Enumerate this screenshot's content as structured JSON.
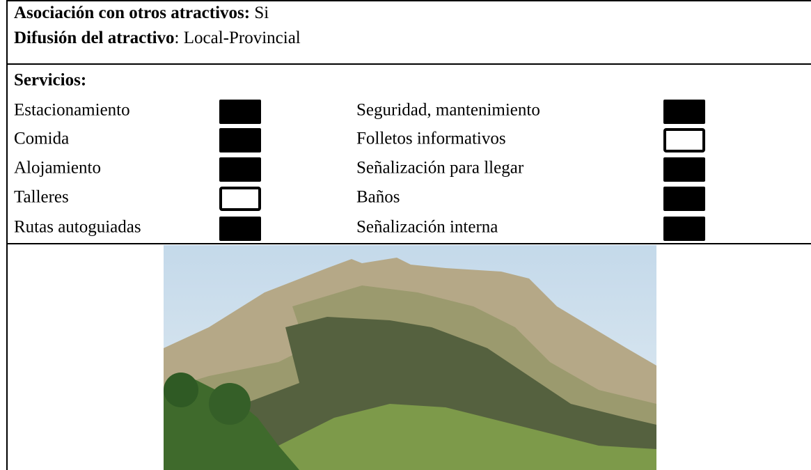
{
  "rows": [
    {
      "label": "Asociación con otros atractivos:",
      "value": " Si"
    },
    {
      "label": "Difusión del atractivo",
      "value": ": Local-Provincial"
    }
  ],
  "services": {
    "title": "Servicios:",
    "columns": [
      [
        {
          "label": "Estacionamiento",
          "checked": true
        },
        {
          "label": "Comida",
          "checked": true
        },
        {
          "label": "Alojamiento",
          "checked": true
        },
        {
          "label": "Talleres",
          "checked": false
        },
        {
          "label": "Rutas autoguiadas",
          "checked": true
        }
      ],
      [
        {
          "label": "Seguridad, mantenimiento",
          "checked": true
        },
        {
          "label": "Folletos informativos",
          "checked": false
        },
        {
          "label": "Señalización para llegar",
          "checked": true
        },
        {
          "label": "Baños",
          "checked": true
        },
        {
          "label": "Señalización interna",
          "checked": true
        }
      ]
    ]
  }
}
